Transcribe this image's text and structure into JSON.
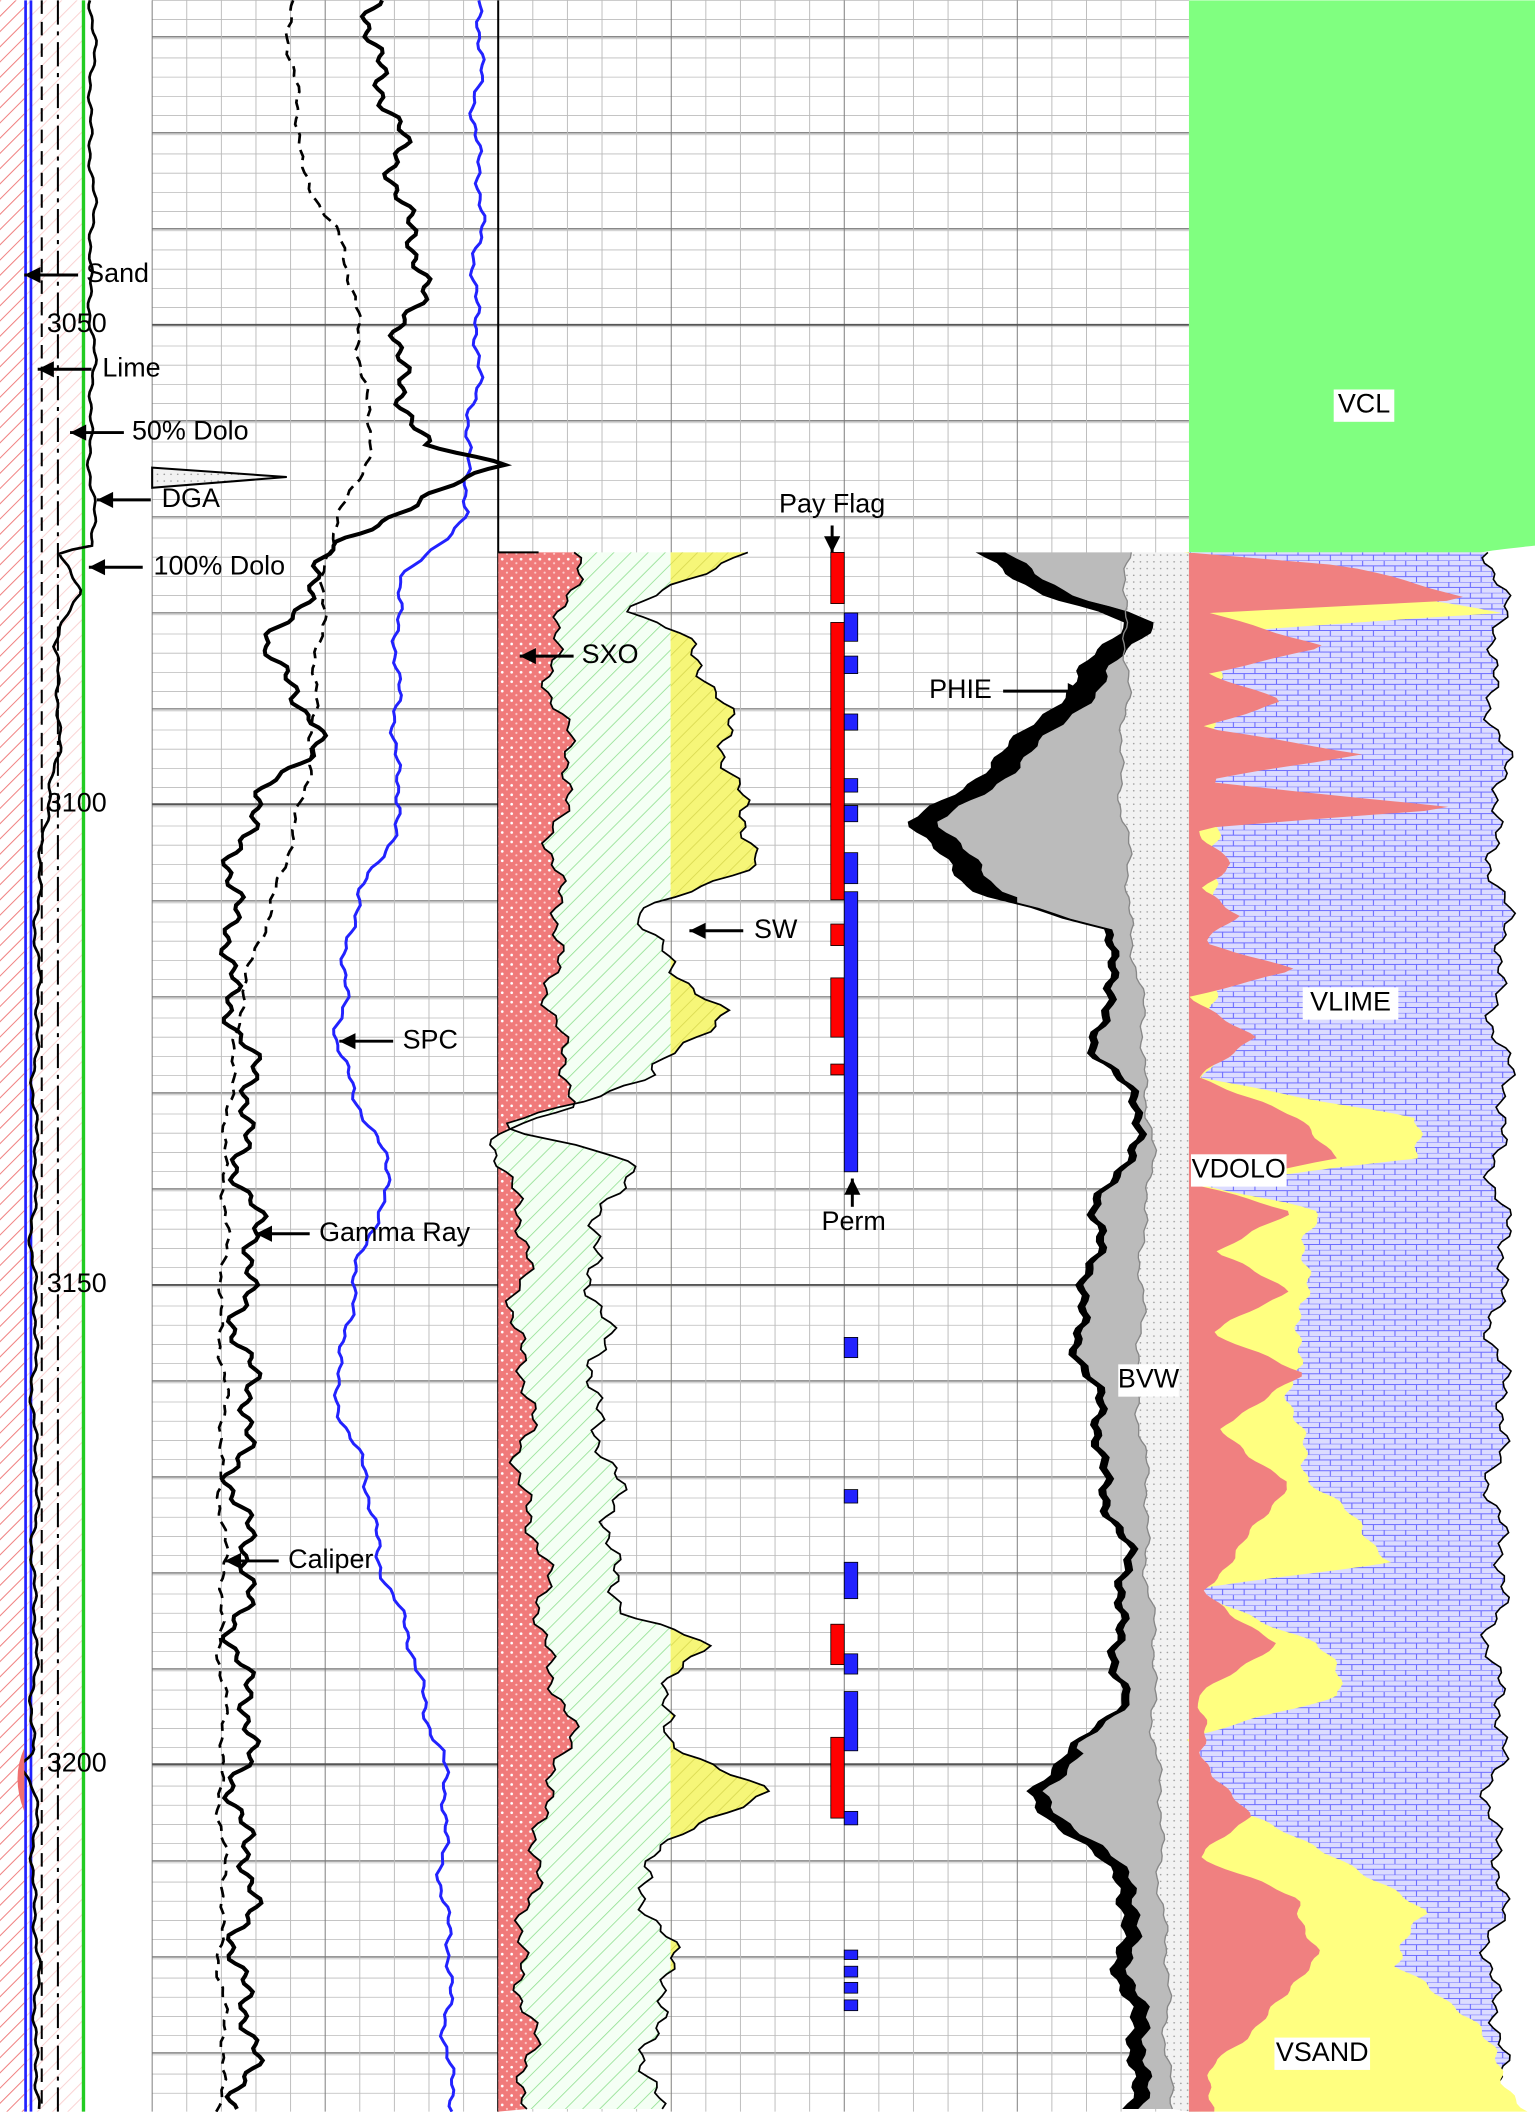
{
  "depth_labels": [
    "3050",
    "3100",
    "3150",
    "3200"
  ],
  "labels": {
    "sand": "Sand",
    "lime": "Lime",
    "dolo50": "50% Dolo",
    "dga": "DGA",
    "dolo100": "100% Dolo",
    "gamma_ray": "Gamma Ray",
    "caliper": "Caliper",
    "spc": "SPC",
    "sxo": "SXO",
    "sw": "SW",
    "pay_flag": "Pay Flag",
    "perm": "Perm",
    "phie": "PHIE",
    "bvw": "BVW",
    "vcl": "VCL",
    "vlime": "VLIME",
    "vdolo": "VDOLO",
    "vsand": "VSAND"
  }
}
